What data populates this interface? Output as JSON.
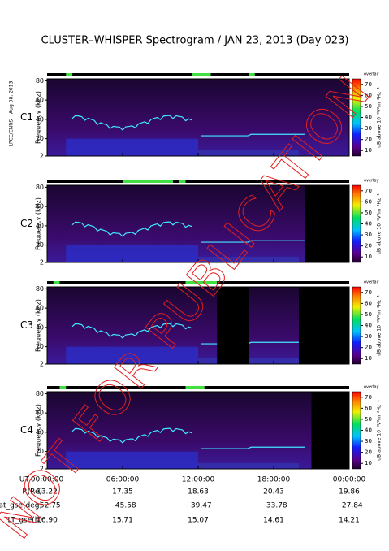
{
  "title": "CLUSTER–WHISPER Spectrogram / JAN 23, 2013 (Day 023)",
  "side_note": "LPCE/CNRS – Aug 08, 2013",
  "watermark": "NOT FOR PUBLICATION",
  "chart_data": [
    {
      "type": "spectrogram",
      "label": "C1",
      "label_color": "#000000",
      "ylabel": "Frequency (kHz)",
      "ylim": [
        2,
        82
      ],
      "yticks": [
        2,
        20,
        40,
        60,
        80
      ],
      "colorbar_label": "dB above 10⁻⁸V²m⁻²Hz⁻¹",
      "colorbar_lim": [
        5,
        75
      ],
      "colorbar_ticks": [
        10,
        20,
        30,
        40,
        50,
        60,
        70
      ],
      "overlay": "overlay"
    },
    {
      "type": "spectrogram",
      "label": "C2",
      "label_color": "#000000",
      "ylabel": "Frequency (kHz)",
      "ylim": [
        2,
        82
      ],
      "yticks": [
        2,
        20,
        40,
        60,
        80
      ],
      "colorbar_label": "dB above 10⁻⁸V²m⁻²Hz⁻¹",
      "colorbar_lim": [
        5,
        75
      ],
      "colorbar_ticks": [
        10,
        20,
        30,
        40,
        50,
        60,
        70
      ],
      "overlay": "overlay"
    },
    {
      "type": "spectrogram",
      "label": "C3",
      "label_color": "#22bb22",
      "ylabel": "Frequency (kHz)",
      "ylim": [
        2,
        82
      ],
      "yticks": [
        2,
        20,
        40,
        60,
        80
      ],
      "colorbar_label": "dB above 10⁻⁸V²m⁻²Hz⁻¹",
      "colorbar_lim": [
        5,
        75
      ],
      "colorbar_ticks": [
        10,
        20,
        30,
        40,
        50,
        60,
        70
      ],
      "overlay": "overlay"
    },
    {
      "type": "spectrogram",
      "label": "C4",
      "label_color": "#000000",
      "ylabel": "Frequency (kHz)",
      "ylim": [
        2,
        82
      ],
      "yticks": [
        2,
        20,
        40,
        60,
        80
      ],
      "colorbar_label": "dB above 10⁻⁸V²m⁻²Hz⁻¹",
      "colorbar_lim": [
        5,
        75
      ],
      "colorbar_ticks": [
        10,
        20,
        30,
        40,
        50,
        60,
        70
      ],
      "overlay": "overlay"
    }
  ],
  "xlim": [
    0,
    24
  ],
  "xticks": [
    {
      "value": 0,
      "label": "00:00:00"
    },
    {
      "value": 6,
      "label": "06:00:00"
    },
    {
      "value": 12,
      "label": "12:00:00"
    },
    {
      "value": 18,
      "label": "18:00:00"
    },
    {
      "value": 24,
      "label": "00:00:00"
    }
  ],
  "orbit": {
    "ut_label": "UT",
    "rows": [
      {
        "label": "R(Re)",
        "values": [
          "13.22",
          "17.35",
          "18.63",
          "20.43",
          "19.86"
        ]
      },
      {
        "label": "Lat_gse(deg)",
        "values": [
          "−52.75",
          "−45.58",
          "−39.47",
          "−33.78",
          "−27.84"
        ]
      },
      {
        "label": "LT_gse(h)",
        "values": [
          "16.90",
          "15.71",
          "15.07",
          "14.61",
          "14.21"
        ]
      }
    ]
  }
}
